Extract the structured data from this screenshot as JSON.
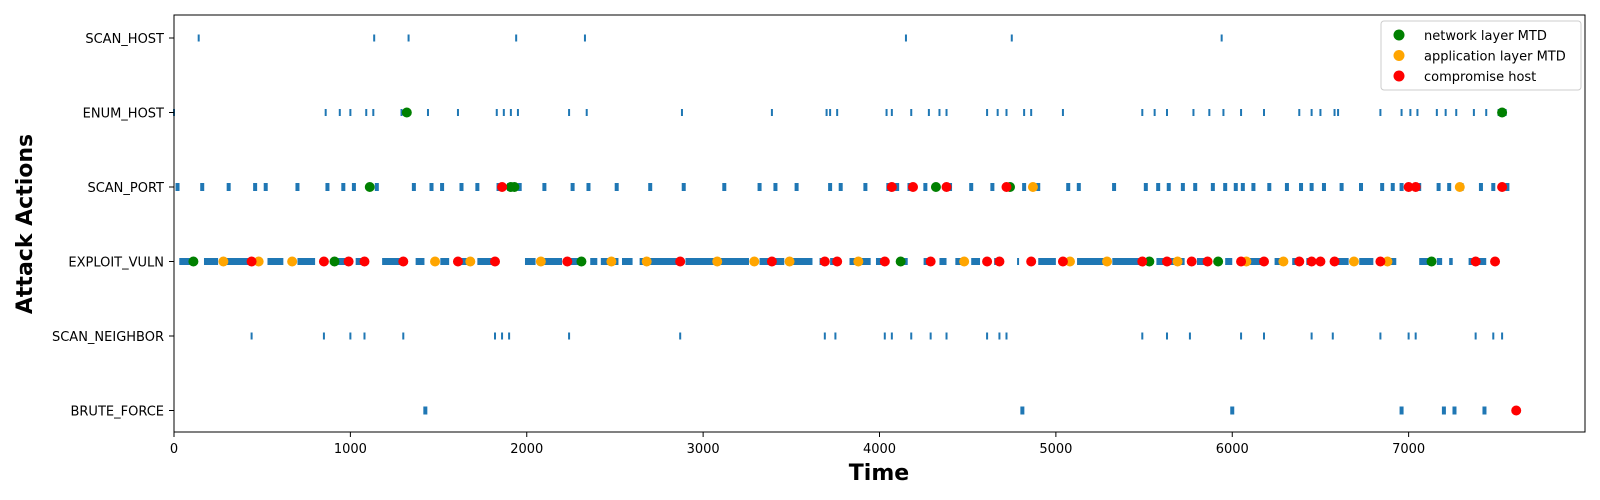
{
  "chart_data": {
    "type": "scatter",
    "title": "",
    "xlabel": "Time",
    "ylabel": "Attack Actions",
    "xlim": [
      0,
      8000
    ],
    "x_ticks": [
      0,
      1000,
      2000,
      3000,
      4000,
      5000,
      6000,
      7000
    ],
    "categories": [
      "SCAN_HOST",
      "ENUM_HOST",
      "SCAN_PORT",
      "EXPLOIT_VULN",
      "SCAN_NEIGHBOR",
      "BRUTE_FORCE"
    ],
    "grid": false,
    "legend_position": "top-right",
    "action_events": {
      "color": "#1f77b4",
      "rows": [
        {
          "category": "SCAN_HOST",
          "times": [
            140,
            1135,
            1330,
            1940,
            2330,
            4150,
            4750,
            5940
          ]
        },
        {
          "category": "ENUM_HOST",
          "times": [
            0,
            860,
            940,
            1000,
            1090,
            1130,
            1290,
            1440,
            1610,
            1830,
            1870,
            1910,
            1950,
            2240,
            2340,
            2880,
            3390,
            3700,
            3720,
            3760,
            4040,
            4070,
            4180,
            4280,
            4340,
            4380,
            4610,
            4670,
            4720,
            4820,
            4860,
            5040,
            5490,
            5560,
            5630,
            5780,
            5870,
            5950,
            6050,
            6180,
            6380,
            6450,
            6500,
            6580,
            6600,
            6840,
            6960,
            7010,
            7050,
            7160,
            7210,
            7270,
            7370,
            7440,
            7510,
            7550
          ]
        },
        {
          "category": "SCAN_PORT",
          "times": [
            20,
            160,
            310,
            460,
            520,
            700,
            870,
            960,
            1020,
            1150,
            1360,
            1460,
            1520,
            1630,
            1720,
            1840,
            1900,
            1960,
            2100,
            2260,
            2350,
            2510,
            2700,
            2890,
            3120,
            3320,
            3410,
            3530,
            3720,
            3780,
            3920,
            4050,
            4100,
            4170,
            4260,
            4400,
            4520,
            4640,
            4720,
            4820,
            4900,
            5070,
            5130,
            5330,
            5510,
            5580,
            5640,
            5720,
            5790,
            5890,
            5960,
            6020,
            6060,
            6120,
            6210,
            6310,
            6390,
            6450,
            6520,
            6620,
            6730,
            6850,
            6910,
            6960,
            7060,
            7170,
            7230,
            7300,
            7410,
            7480,
            7560
          ]
        },
        {
          "category": "EXPLOIT_VULN",
          "runs": [
            [
              30,
              90
            ],
            [
              170,
              250
            ],
            [
              280,
              440
            ],
            [
              530,
              620
            ],
            [
              700,
              800
            ],
            [
              900,
              990
            ],
            [
              1030,
              1070
            ],
            [
              1180,
              1300
            ],
            [
              1370,
              1420
            ],
            [
              1510,
              1560
            ],
            [
              1630,
              1660
            ],
            [
              1720,
              1800
            ],
            [
              1990,
              2050
            ],
            [
              2100,
              2200
            ],
            [
              2250,
              2300
            ],
            [
              2360,
              2400
            ],
            [
              2420,
              2520
            ],
            [
              2540,
              2600
            ],
            [
              2640,
              2860
            ],
            [
              2900,
              3060
            ],
            [
              3100,
              3260
            ],
            [
              3320,
              3380
            ],
            [
              3400,
              3460
            ],
            [
              3510,
              3620
            ],
            [
              3660,
              3690
            ],
            [
              3720,
              3780
            ],
            [
              3830,
              3860
            ],
            [
              3900,
              3950
            ],
            [
              3980,
              4010
            ],
            [
              4100,
              4160
            ],
            [
              4250,
              4270
            ],
            [
              4340,
              4380
            ],
            [
              4430,
              4470
            ],
            [
              4520,
              4570
            ],
            [
              4650,
              4700
            ],
            [
              4780,
              4790
            ],
            [
              4900,
              5000
            ],
            [
              5120,
              5270
            ],
            [
              5320,
              5480
            ],
            [
              5570,
              5610
            ],
            [
              5650,
              5730
            ],
            [
              5800,
              5880
            ],
            [
              5960,
              6000
            ],
            [
              6100,
              6180
            ],
            [
              6240,
              6300
            ],
            [
              6340,
              6390
            ],
            [
              6420,
              6450
            ],
            [
              6600,
              6660
            ],
            [
              6720,
              6800
            ],
            [
              6890,
              6930
            ],
            [
              7060,
              7110
            ],
            [
              7160,
              7190
            ],
            [
              7230,
              7250
            ],
            [
              7340,
              7380
            ],
            [
              7400,
              7440
            ]
          ]
        },
        {
          "category": "SCAN_NEIGHBOR",
          "times": [
            440,
            850,
            1000,
            1080,
            1300,
            1820,
            1860,
            1900,
            2240,
            2870,
            3690,
            3750,
            4030,
            4070,
            4180,
            4290,
            4380,
            4610,
            4680,
            4720,
            5490,
            5630,
            5760,
            6050,
            6180,
            6450,
            6570,
            6840,
            7000,
            7040,
            7380,
            7480,
            7530
          ]
        },
        {
          "category": "BRUTE_FORCE",
          "times": [
            1425,
            4810,
            6000,
            6960,
            7200,
            7260,
            7430,
            7610
          ]
        }
      ]
    },
    "series": [
      {
        "name": "network layer MTD",
        "color": "#008000",
        "points": [
          {
            "x": 1320,
            "y": "ENUM_HOST"
          },
          {
            "x": 7530,
            "y": "ENUM_HOST"
          },
          {
            "x": 1110,
            "y": "SCAN_PORT"
          },
          {
            "x": 1910,
            "y": "SCAN_PORT"
          },
          {
            "x": 1930,
            "y": "SCAN_PORT"
          },
          {
            "x": 4320,
            "y": "SCAN_PORT"
          },
          {
            "x": 4740,
            "y": "SCAN_PORT"
          },
          {
            "x": 110,
            "y": "EXPLOIT_VULN"
          },
          {
            "x": 910,
            "y": "EXPLOIT_VULN"
          },
          {
            "x": 2310,
            "y": "EXPLOIT_VULN"
          },
          {
            "x": 4120,
            "y": "EXPLOIT_VULN"
          },
          {
            "x": 5530,
            "y": "EXPLOIT_VULN"
          },
          {
            "x": 5920,
            "y": "EXPLOIT_VULN"
          },
          {
            "x": 7130,
            "y": "EXPLOIT_VULN"
          }
        ]
      },
      {
        "name": "application layer MTD",
        "color": "#FFA500",
        "points": [
          {
            "x": 4870,
            "y": "SCAN_PORT"
          },
          {
            "x": 7290,
            "y": "SCAN_PORT"
          },
          {
            "x": 280,
            "y": "EXPLOIT_VULN"
          },
          {
            "x": 480,
            "y": "EXPLOIT_VULN"
          },
          {
            "x": 670,
            "y": "EXPLOIT_VULN"
          },
          {
            "x": 1480,
            "y": "EXPLOIT_VULN"
          },
          {
            "x": 1680,
            "y": "EXPLOIT_VULN"
          },
          {
            "x": 2080,
            "y": "EXPLOIT_VULN"
          },
          {
            "x": 2480,
            "y": "EXPLOIT_VULN"
          },
          {
            "x": 2680,
            "y": "EXPLOIT_VULN"
          },
          {
            "x": 3080,
            "y": "EXPLOIT_VULN"
          },
          {
            "x": 3290,
            "y": "EXPLOIT_VULN"
          },
          {
            "x": 3490,
            "y": "EXPLOIT_VULN"
          },
          {
            "x": 3880,
            "y": "EXPLOIT_VULN"
          },
          {
            "x": 4480,
            "y": "EXPLOIT_VULN"
          },
          {
            "x": 5080,
            "y": "EXPLOIT_VULN"
          },
          {
            "x": 5290,
            "y": "EXPLOIT_VULN"
          },
          {
            "x": 5690,
            "y": "EXPLOIT_VULN"
          },
          {
            "x": 6080,
            "y": "EXPLOIT_VULN"
          },
          {
            "x": 6290,
            "y": "EXPLOIT_VULN"
          },
          {
            "x": 6690,
            "y": "EXPLOIT_VULN"
          },
          {
            "x": 6880,
            "y": "EXPLOIT_VULN"
          }
        ]
      },
      {
        "name": "compromise host",
        "color": "#FF0000",
        "points": [
          {
            "x": 1860,
            "y": "SCAN_PORT"
          },
          {
            "x": 4070,
            "y": "SCAN_PORT"
          },
          {
            "x": 4190,
            "y": "SCAN_PORT"
          },
          {
            "x": 4380,
            "y": "SCAN_PORT"
          },
          {
            "x": 4720,
            "y": "SCAN_PORT"
          },
          {
            "x": 7000,
            "y": "SCAN_PORT"
          },
          {
            "x": 7040,
            "y": "SCAN_PORT"
          },
          {
            "x": 7530,
            "y": "SCAN_PORT"
          },
          {
            "x": 440,
            "y": "EXPLOIT_VULN"
          },
          {
            "x": 850,
            "y": "EXPLOIT_VULN"
          },
          {
            "x": 990,
            "y": "EXPLOIT_VULN"
          },
          {
            "x": 1080,
            "y": "EXPLOIT_VULN"
          },
          {
            "x": 1300,
            "y": "EXPLOIT_VULN"
          },
          {
            "x": 1610,
            "y": "EXPLOIT_VULN"
          },
          {
            "x": 1820,
            "y": "EXPLOIT_VULN"
          },
          {
            "x": 2230,
            "y": "EXPLOIT_VULN"
          },
          {
            "x": 2870,
            "y": "EXPLOIT_VULN"
          },
          {
            "x": 3390,
            "y": "EXPLOIT_VULN"
          },
          {
            "x": 3690,
            "y": "EXPLOIT_VULN"
          },
          {
            "x": 3760,
            "y": "EXPLOIT_VULN"
          },
          {
            "x": 4030,
            "y": "EXPLOIT_VULN"
          },
          {
            "x": 4290,
            "y": "EXPLOIT_VULN"
          },
          {
            "x": 4610,
            "y": "EXPLOIT_VULN"
          },
          {
            "x": 4680,
            "y": "EXPLOIT_VULN"
          },
          {
            "x": 4860,
            "y": "EXPLOIT_VULN"
          },
          {
            "x": 5040,
            "y": "EXPLOIT_VULN"
          },
          {
            "x": 5490,
            "y": "EXPLOIT_VULN"
          },
          {
            "x": 5630,
            "y": "EXPLOIT_VULN"
          },
          {
            "x": 5770,
            "y": "EXPLOIT_VULN"
          },
          {
            "x": 5860,
            "y": "EXPLOIT_VULN"
          },
          {
            "x": 6050,
            "y": "EXPLOIT_VULN"
          },
          {
            "x": 6180,
            "y": "EXPLOIT_VULN"
          },
          {
            "x": 6380,
            "y": "EXPLOIT_VULN"
          },
          {
            "x": 6450,
            "y": "EXPLOIT_VULN"
          },
          {
            "x": 6500,
            "y": "EXPLOIT_VULN"
          },
          {
            "x": 6580,
            "y": "EXPLOIT_VULN"
          },
          {
            "x": 6840,
            "y": "EXPLOIT_VULN"
          },
          {
            "x": 7380,
            "y": "EXPLOIT_VULN"
          },
          {
            "x": 7490,
            "y": "EXPLOIT_VULN"
          },
          {
            "x": 7610,
            "y": "BRUTE_FORCE"
          }
        ]
      }
    ]
  }
}
